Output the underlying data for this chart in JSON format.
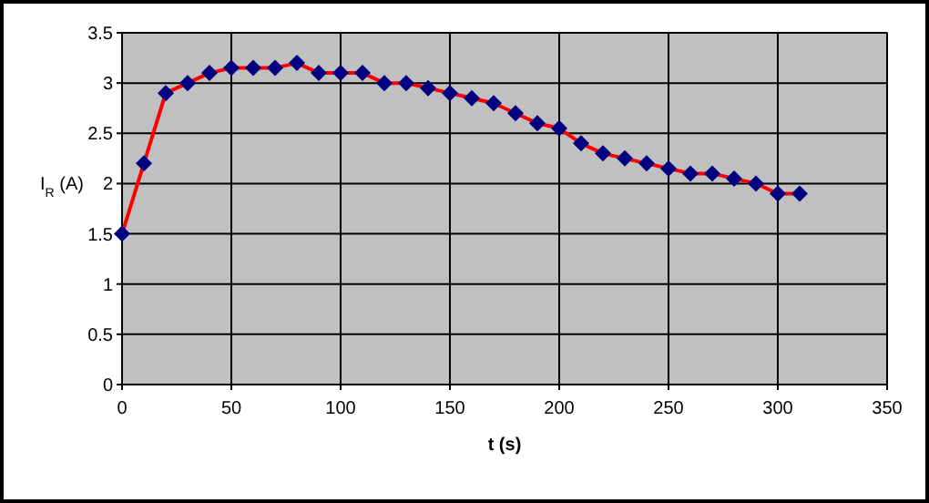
{
  "chart_data": {
    "type": "line",
    "xlabel": "t (s)",
    "ylabel": "I$_{R}$ (A)",
    "x": [
      0,
      10,
      20,
      30,
      40,
      50,
      60,
      70,
      80,
      90,
      100,
      110,
      120,
      130,
      140,
      150,
      160,
      170,
      180,
      190,
      200,
      210,
      220,
      230,
      240,
      250,
      260,
      270,
      280,
      290,
      300,
      310
    ],
    "series": [
      {
        "color": "#ff0000",
        "values": [
          1.5,
          2.2,
          2.9,
          3.0,
          3.1,
          3.15,
          3.15,
          3.15,
          3.2,
          3.1,
          3.1,
          3.1,
          3.0,
          3.0,
          2.95,
          2.9,
          2.85,
          2.8,
          2.7,
          2.6,
          2.55,
          2.4,
          2.3,
          2.25,
          2.2,
          2.15,
          2.1,
          2.1,
          2.05,
          2.0,
          1.9,
          1.9
        ]
      }
    ],
    "xlim": [
      0,
      350
    ],
    "xticks": [
      0,
      50,
      100,
      150,
      200,
      250,
      300,
      350
    ],
    "ylim": [
      0,
      3.5
    ],
    "yticks": [
      0,
      0.5,
      1,
      1.5,
      2,
      2.5,
      3,
      3.5
    ],
    "grid": true,
    "marker": "diamond",
    "line_style": "solid"
  }
}
